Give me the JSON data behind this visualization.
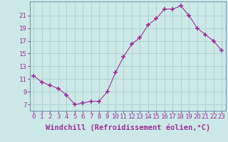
{
  "hours": [
    0,
    1,
    2,
    3,
    4,
    5,
    6,
    7,
    8,
    9,
    10,
    11,
    12,
    13,
    14,
    15,
    16,
    17,
    18,
    19,
    20,
    21,
    22,
    23
  ],
  "values": [
    11.5,
    10.5,
    10.0,
    9.5,
    8.5,
    7.0,
    7.2,
    7.5,
    7.5,
    9.0,
    12.0,
    14.5,
    16.5,
    17.5,
    19.5,
    20.5,
    22.0,
    22.0,
    22.5,
    21.0,
    19.0,
    18.0,
    17.0,
    15.5
  ],
  "xlabel": "Windchill (Refroidissement éolien,°C)",
  "ylabel_ticks": [
    7,
    9,
    11,
    13,
    15,
    17,
    19,
    21
  ],
  "ylim": [
    6.0,
    23.2
  ],
  "xlim": [
    -0.5,
    23.5
  ],
  "line_color": "#993399",
  "marker_color": "#993399",
  "bg_color": "#cce8e8",
  "grid_color": "#aacccc",
  "tick_color": "#993399",
  "label_color": "#993399",
  "tick_fontsize": 6.5,
  "xlabel_fontsize": 7.5
}
